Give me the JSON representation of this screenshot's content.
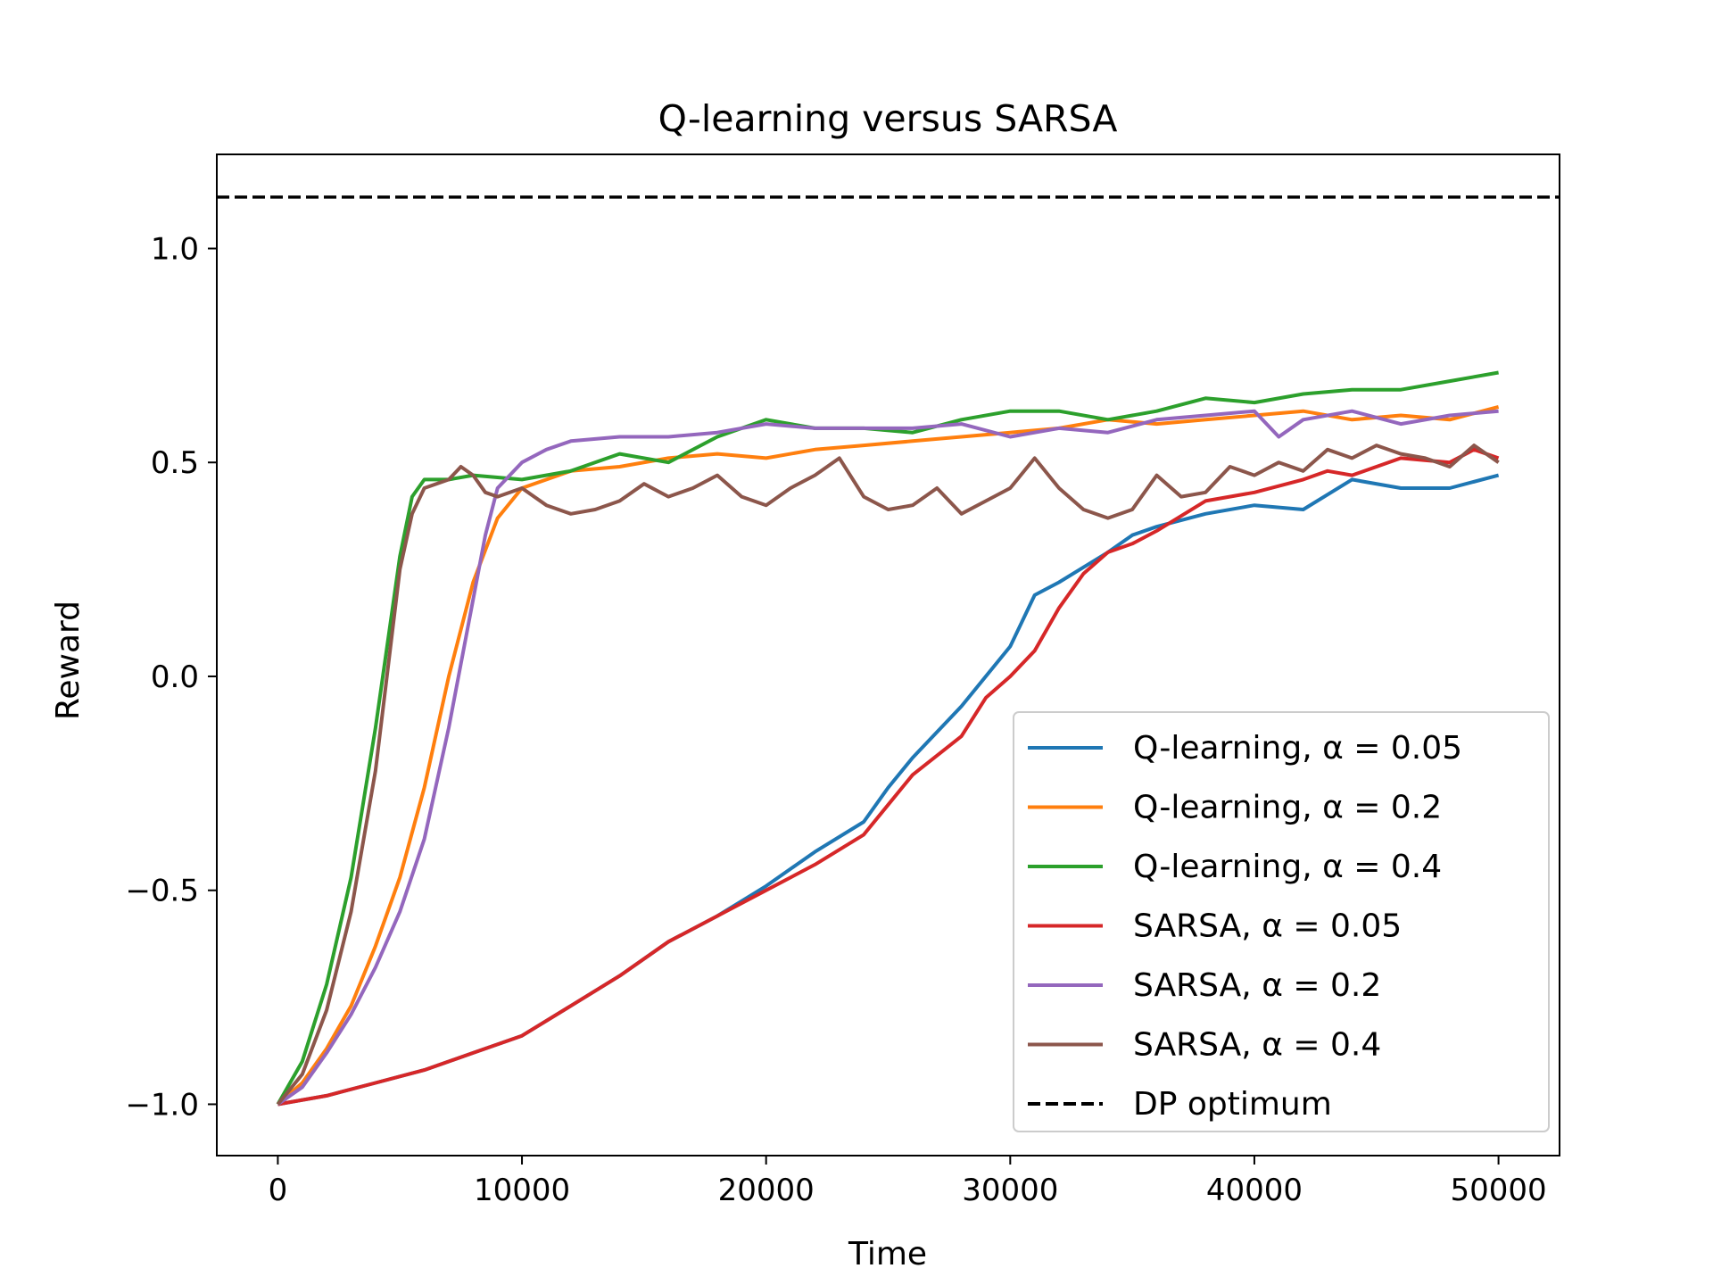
{
  "chart_data": {
    "type": "line",
    "title": "Q-learning versus SARSA",
    "xlabel": "Time",
    "ylabel": "Reward",
    "xlim": [
      -2500,
      52500
    ],
    "ylim": [
      -1.12,
      1.22
    ],
    "xticks": [
      0,
      10000,
      20000,
      30000,
      40000,
      50000
    ],
    "xtick_labels": [
      "0",
      "10000",
      "20000",
      "30000",
      "40000",
      "50000"
    ],
    "yticks": [
      -1.0,
      -0.5,
      0.0,
      0.5,
      1.0
    ],
    "ytick_labels": [
      "−1.0",
      "−0.5",
      "0.0",
      "0.5",
      "1.0"
    ],
    "grid": false,
    "legend_position": "lower-right",
    "series": [
      {
        "name": "Q-learning, α = 0.05",
        "color": "#1f77b4",
        "x": [
          0,
          2000,
          4000,
          6000,
          8000,
          10000,
          12000,
          14000,
          16000,
          18000,
          20000,
          22000,
          24000,
          25000,
          26000,
          28000,
          30000,
          31000,
          32000,
          34000,
          35000,
          36000,
          38000,
          40000,
          42000,
          44000,
          46000,
          48000,
          50000
        ],
        "y": [
          -1.0,
          -0.98,
          -0.95,
          -0.92,
          -0.88,
          -0.84,
          -0.77,
          -0.7,
          -0.62,
          -0.56,
          -0.49,
          -0.41,
          -0.34,
          -0.26,
          -0.19,
          -0.07,
          0.07,
          0.19,
          0.22,
          0.29,
          0.33,
          0.35,
          0.38,
          0.4,
          0.39,
          0.46,
          0.44,
          0.44,
          0.47
        ]
      },
      {
        "name": "Q-learning, α = 0.2",
        "color": "#ff7f0e",
        "x": [
          0,
          1000,
          2000,
          3000,
          4000,
          5000,
          6000,
          7000,
          8000,
          9000,
          10000,
          12000,
          14000,
          16000,
          18000,
          20000,
          22000,
          24000,
          26000,
          28000,
          30000,
          32000,
          34000,
          36000,
          38000,
          40000,
          42000,
          44000,
          46000,
          48000,
          50000
        ],
        "y": [
          -1.0,
          -0.95,
          -0.87,
          -0.77,
          -0.63,
          -0.47,
          -0.26,
          0.0,
          0.22,
          0.37,
          0.44,
          0.48,
          0.49,
          0.51,
          0.52,
          0.51,
          0.53,
          0.54,
          0.55,
          0.56,
          0.57,
          0.58,
          0.6,
          0.59,
          0.6,
          0.61,
          0.62,
          0.6,
          0.61,
          0.6,
          0.63
        ]
      },
      {
        "name": "Q-learning, α = 0.4",
        "color": "#2ca02c",
        "x": [
          0,
          1000,
          2000,
          3000,
          4000,
          5000,
          5500,
          6000,
          7000,
          8000,
          10000,
          12000,
          14000,
          16000,
          18000,
          20000,
          22000,
          24000,
          26000,
          28000,
          30000,
          32000,
          34000,
          36000,
          38000,
          40000,
          42000,
          44000,
          46000,
          48000,
          50000
        ],
        "y": [
          -1.0,
          -0.9,
          -0.72,
          -0.47,
          -0.12,
          0.28,
          0.42,
          0.46,
          0.46,
          0.47,
          0.46,
          0.48,
          0.52,
          0.5,
          0.56,
          0.6,
          0.58,
          0.58,
          0.57,
          0.6,
          0.62,
          0.62,
          0.6,
          0.62,
          0.65,
          0.64,
          0.66,
          0.67,
          0.67,
          0.69,
          0.71
        ]
      },
      {
        "name": "SARSA, α = 0.05",
        "color": "#d62728",
        "x": [
          0,
          2000,
          4000,
          6000,
          8000,
          10000,
          12000,
          14000,
          16000,
          18000,
          20000,
          22000,
          24000,
          25000,
          26000,
          28000,
          29000,
          30000,
          31000,
          32000,
          33000,
          34000,
          35000,
          36000,
          38000,
          40000,
          42000,
          43000,
          44000,
          46000,
          48000,
          49000,
          50000
        ],
        "y": [
          -1.0,
          -0.98,
          -0.95,
          -0.92,
          -0.88,
          -0.84,
          -0.77,
          -0.7,
          -0.62,
          -0.56,
          -0.5,
          -0.44,
          -0.37,
          -0.3,
          -0.23,
          -0.14,
          -0.05,
          0.0,
          0.06,
          0.16,
          0.24,
          0.29,
          0.31,
          0.34,
          0.41,
          0.43,
          0.46,
          0.48,
          0.47,
          0.51,
          0.5,
          0.53,
          0.51
        ]
      },
      {
        "name": "SARSA, α = 0.2",
        "color": "#9467bd",
        "x": [
          0,
          1000,
          2000,
          3000,
          4000,
          5000,
          6000,
          7000,
          8000,
          8500,
          9000,
          10000,
          11000,
          12000,
          14000,
          16000,
          18000,
          20000,
          22000,
          24000,
          26000,
          28000,
          30000,
          32000,
          34000,
          36000,
          38000,
          40000,
          41000,
          42000,
          44000,
          46000,
          48000,
          50000
        ],
        "y": [
          -1.0,
          -0.96,
          -0.88,
          -0.79,
          -0.68,
          -0.55,
          -0.38,
          -0.12,
          0.18,
          0.33,
          0.44,
          0.5,
          0.53,
          0.55,
          0.56,
          0.56,
          0.57,
          0.59,
          0.58,
          0.58,
          0.58,
          0.59,
          0.56,
          0.58,
          0.57,
          0.6,
          0.61,
          0.62,
          0.56,
          0.6,
          0.62,
          0.59,
          0.61,
          0.62
        ]
      },
      {
        "name": "SARSA, α = 0.4",
        "color": "#8c564b",
        "x": [
          0,
          1000,
          2000,
          3000,
          4000,
          5000,
          5500,
          6000,
          7000,
          7500,
          8000,
          8500,
          9000,
          10000,
          11000,
          12000,
          13000,
          14000,
          15000,
          16000,
          17000,
          18000,
          19000,
          20000,
          21000,
          22000,
          23000,
          24000,
          25000,
          26000,
          27000,
          28000,
          29000,
          30000,
          31000,
          32000,
          33000,
          34000,
          35000,
          36000,
          37000,
          38000,
          39000,
          40000,
          41000,
          42000,
          43000,
          44000,
          45000,
          46000,
          47000,
          48000,
          49000,
          50000
        ],
        "y": [
          -1.0,
          -0.93,
          -0.78,
          -0.55,
          -0.22,
          0.25,
          0.38,
          0.44,
          0.46,
          0.49,
          0.47,
          0.43,
          0.42,
          0.44,
          0.4,
          0.38,
          0.39,
          0.41,
          0.45,
          0.42,
          0.44,
          0.47,
          0.42,
          0.4,
          0.44,
          0.47,
          0.51,
          0.42,
          0.39,
          0.4,
          0.44,
          0.38,
          0.41,
          0.44,
          0.51,
          0.44,
          0.39,
          0.37,
          0.39,
          0.47,
          0.42,
          0.43,
          0.49,
          0.47,
          0.5,
          0.48,
          0.53,
          0.51,
          0.54,
          0.52,
          0.51,
          0.49,
          0.54,
          0.5
        ]
      },
      {
        "name": "DP optimum",
        "color": "#000000",
        "dashed": true,
        "x": [
          -2500,
          52500
        ],
        "y": [
          1.12,
          1.12
        ]
      }
    ]
  }
}
